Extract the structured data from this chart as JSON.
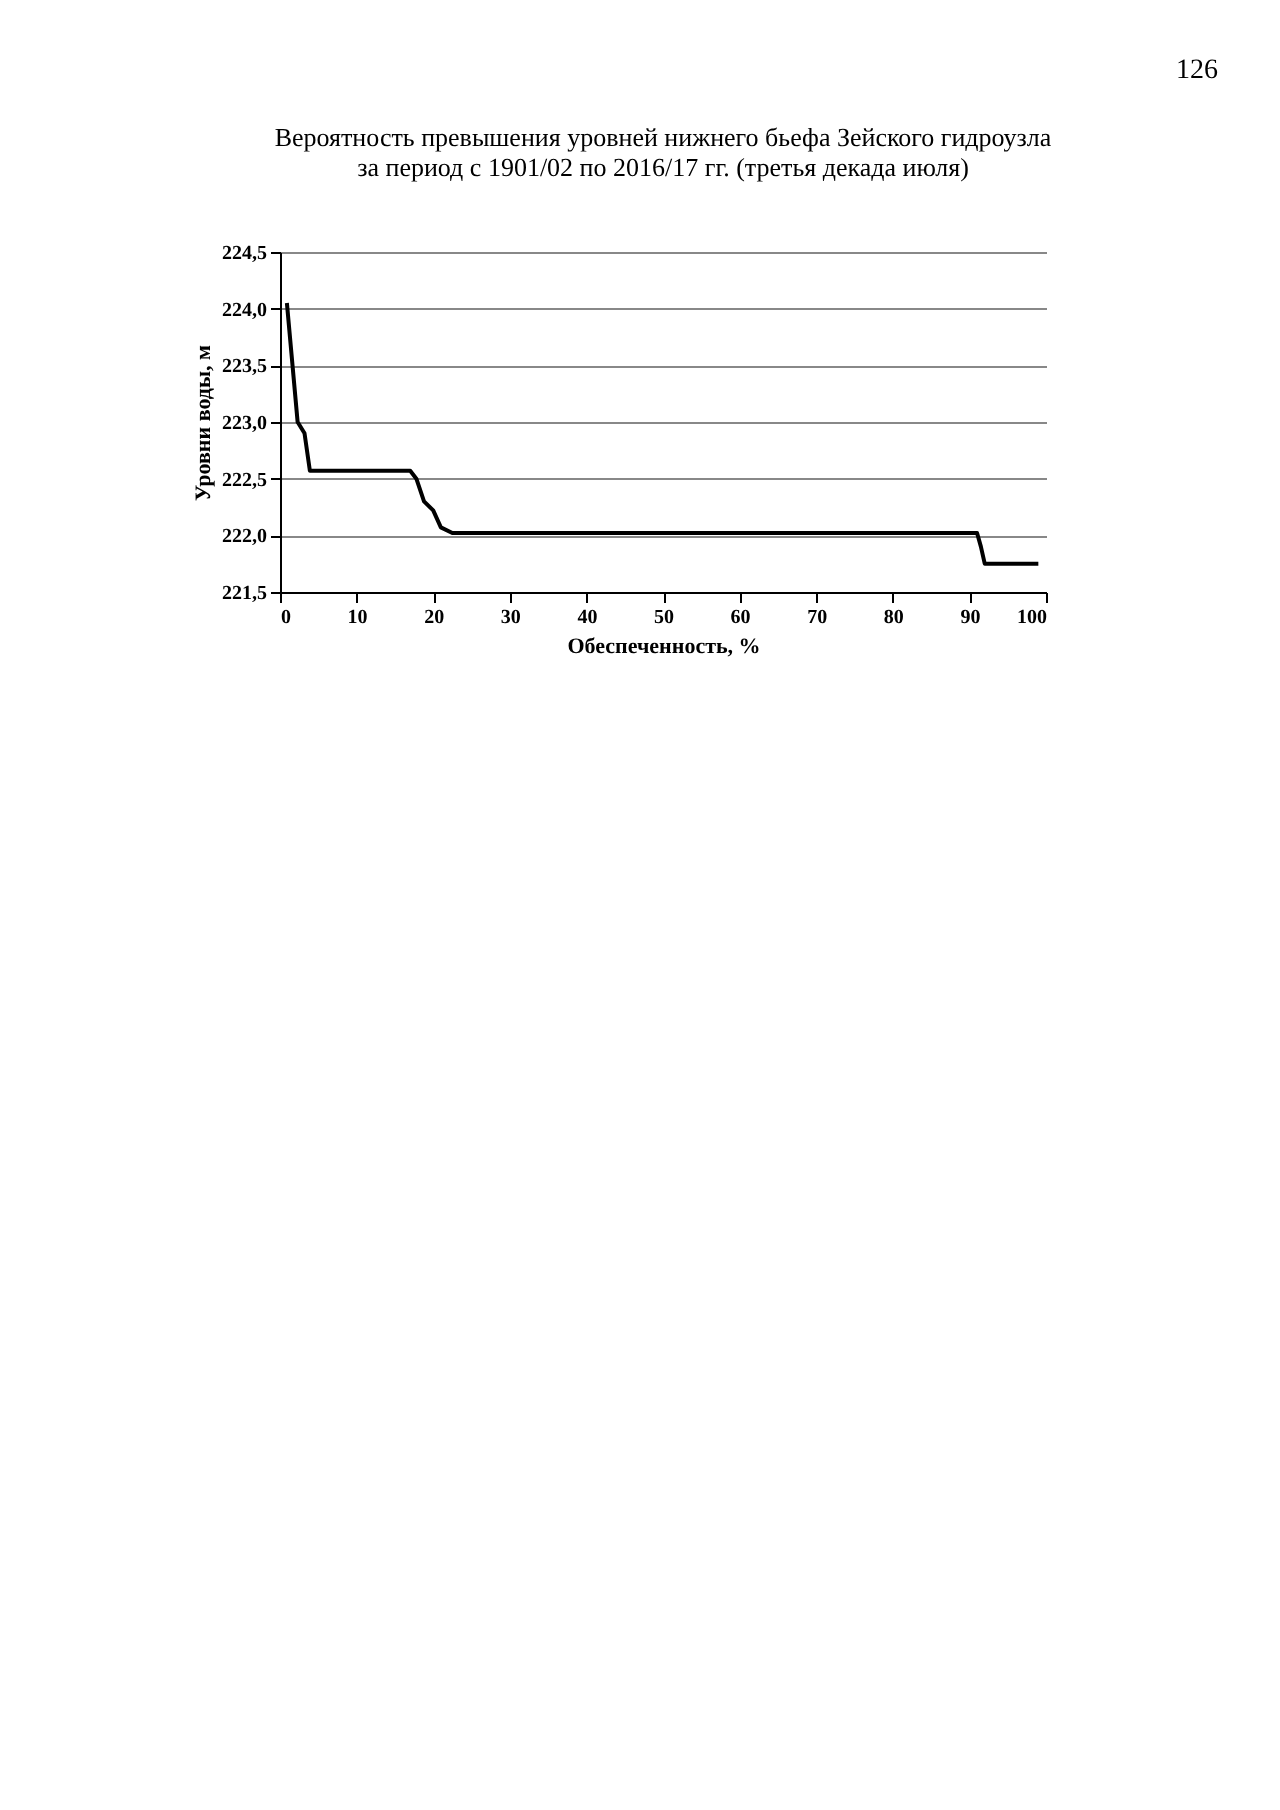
{
  "chart_data": {
    "type": "line",
    "title": "Вероятность превышения уровней нижнего бьефа Зейского гидроузла\nза период с 1901/02 по 2016/17 гг. (третья декада июля)",
    "xlabel": "Обеспеченность, %",
    "ylabel": "Уровни воды, м",
    "annotations": [
      "126"
    ],
    "x": [
      0.9,
      1.5,
      2.3,
      3.2,
      3.9,
      5,
      17,
      17.8,
      18.8,
      20,
      21,
      22.5,
      91,
      91.5,
      92,
      99
    ],
    "series": [
      {
        "color": "#000000",
        "values": [
          224.05,
          223.6,
          223.0,
          222.9,
          222.57,
          222.57,
          222.57,
          222.5,
          222.3,
          222.22,
          222.07,
          222.02,
          222.02,
          221.9,
          221.75,
          221.75
        ]
      }
    ],
    "xlim": [
      0,
      100
    ],
    "xticks": [
      0,
      10,
      20,
      30,
      40,
      50,
      60,
      70,
      80,
      90,
      100
    ],
    "ylim": [
      221.5,
      224.5
    ],
    "yticks": [
      {
        "value": 221.5,
        "label": "221,5"
      },
      {
        "value": 222,
        "label": "222,0"
      },
      {
        "value": 222.5,
        "label": "222,5"
      },
      {
        "value": 223,
        "label": "223,0"
      },
      {
        "value": 223.5,
        "label": "223,5"
      },
      {
        "value": 224,
        "label": "224,0"
      },
      {
        "value": 224.5,
        "label": "224,5"
      }
    ],
    "grid": "y",
    "legend": false,
    "marker": "none",
    "line_style": "solid"
  }
}
